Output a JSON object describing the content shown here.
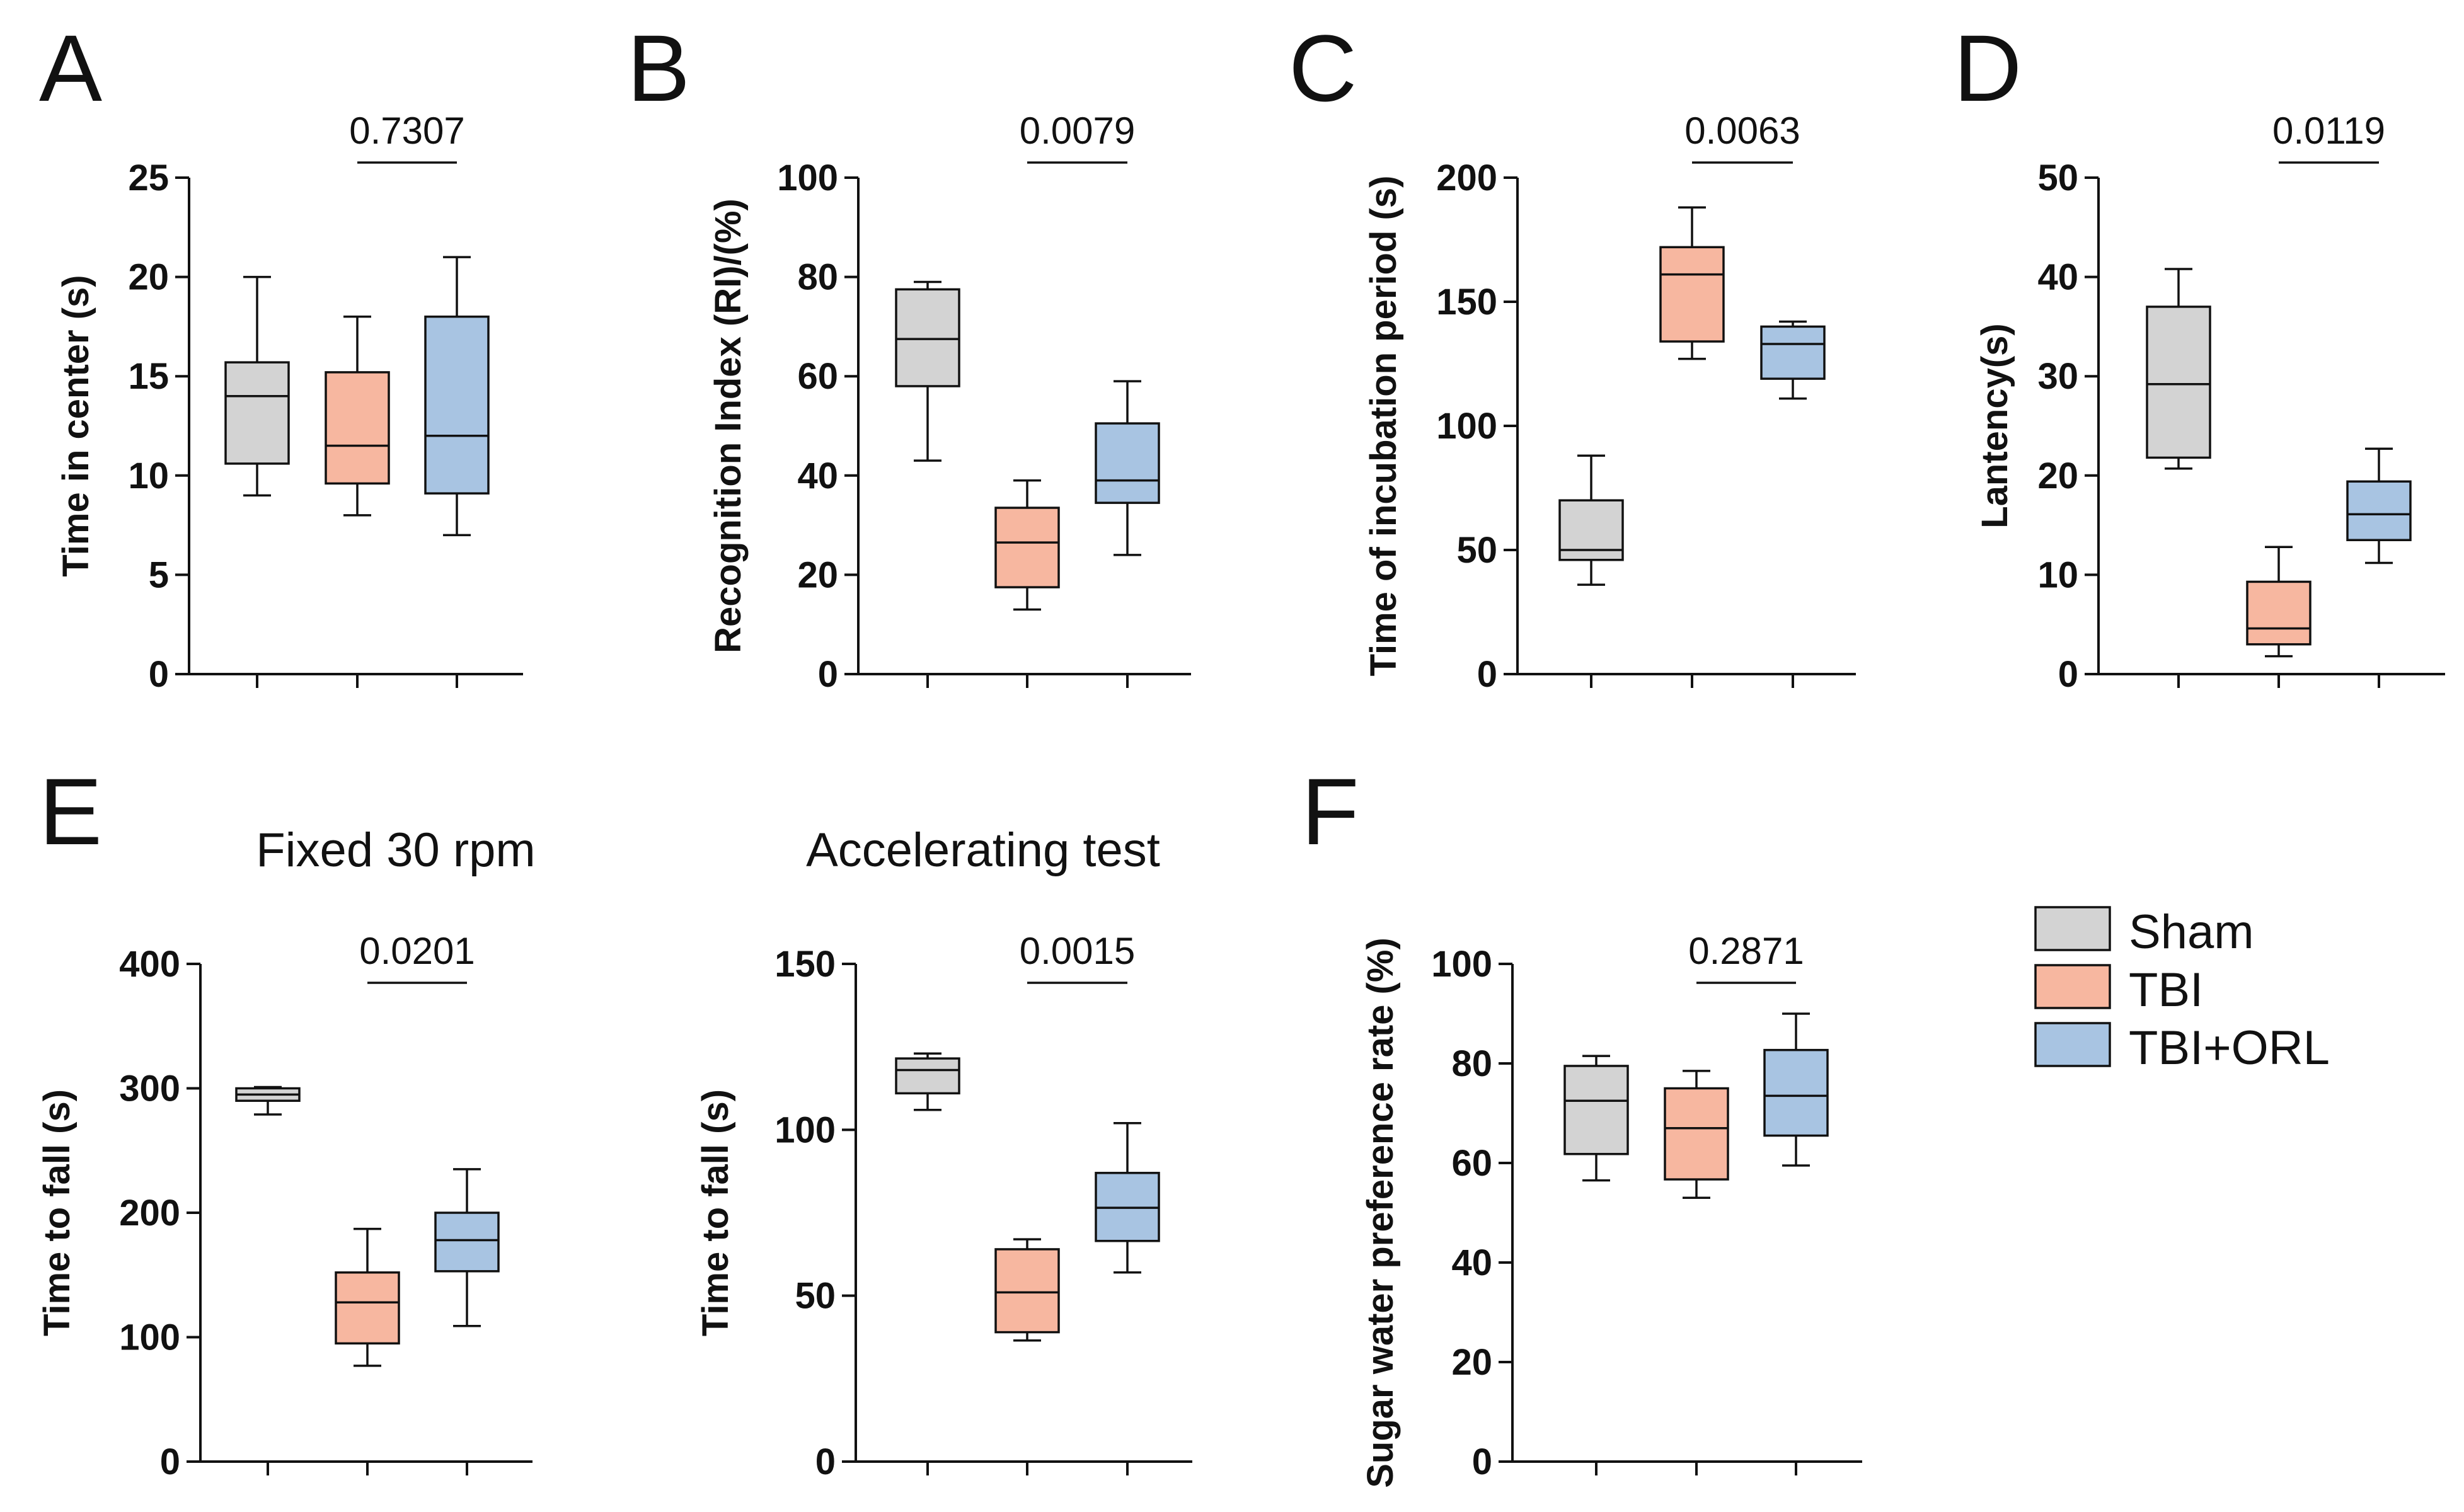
{
  "panel_letters": [
    "A",
    "B",
    "C",
    "D",
    "E",
    "F"
  ],
  "legend": {
    "entries": [
      {
        "name": "Sham",
        "color": "#d3d3d3"
      },
      {
        "name": "TBI",
        "color": "#f7b7a0"
      },
      {
        "name": "TBI+ORL",
        "color": "#a8c4e2"
      }
    ]
  },
  "chart_data": [
    {
      "id": "A",
      "letter": "A",
      "type": "box",
      "title": "",
      "ylabel": "Time in center (s)",
      "ylim": [
        0,
        25
      ],
      "yticks": [
        0,
        5,
        10,
        15,
        20,
        25
      ],
      "groups": [
        "Sham",
        "TBI",
        "TBI+ORL"
      ],
      "series": [
        {
          "name": "Sham",
          "min": 9,
          "q1": 10.6,
          "median": 14,
          "q3": 15.7,
          "max": 20
        },
        {
          "name": "TBI",
          "min": 8,
          "q1": 9.6,
          "median": 11.5,
          "q3": 15.2,
          "max": 18
        },
        {
          "name": "TBI+ORL",
          "min": 7,
          "q1": 9.1,
          "median": 12,
          "q3": 18,
          "max": 21
        }
      ],
      "comparison": {
        "groups": [
          "TBI",
          "TBI+ORL"
        ],
        "p_value": "0.7307"
      }
    },
    {
      "id": "B",
      "letter": "B",
      "type": "box",
      "title": "",
      "ylabel": "Recognition Index (RI)/(%)",
      "ylim": [
        0,
        100
      ],
      "yticks": [
        0,
        20,
        40,
        60,
        80,
        100
      ],
      "groups": [
        "Sham",
        "TBI",
        "TBI+ORL"
      ],
      "series": [
        {
          "name": "Sham",
          "min": 43,
          "q1": 58,
          "median": 67.5,
          "q3": 77.5,
          "max": 79
        },
        {
          "name": "TBI",
          "min": 13,
          "q1": 17.5,
          "median": 26.5,
          "q3": 33.5,
          "max": 39
        },
        {
          "name": "TBI+ORL",
          "min": 24,
          "q1": 34.5,
          "median": 39,
          "q3": 50.5,
          "max": 59
        }
      ],
      "comparison": {
        "groups": [
          "TBI",
          "TBI+ORL"
        ],
        "p_value": "0.0079"
      }
    },
    {
      "id": "C",
      "letter": "C",
      "type": "box",
      "title": "",
      "ylabel": "Time of incubation period (s)",
      "ylim": [
        0,
        200
      ],
      "yticks": [
        0,
        50,
        100,
        150,
        200
      ],
      "groups": [
        "Sham",
        "TBI",
        "TBI+ORL"
      ],
      "series": [
        {
          "name": "Sham",
          "min": 36,
          "q1": 46,
          "median": 50,
          "q3": 70,
          "max": 88
        },
        {
          "name": "TBI",
          "min": 127,
          "q1": 134,
          "median": 161,
          "q3": 172,
          "max": 188
        },
        {
          "name": "TBI+ORL",
          "min": 111,
          "q1": 119,
          "median": 133,
          "q3": 140,
          "max": 142
        }
      ],
      "comparison": {
        "groups": [
          "TBI",
          "TBI+ORL"
        ],
        "p_value": "0.0063"
      }
    },
    {
      "id": "D",
      "letter": "D",
      "type": "box",
      "title": "",
      "ylabel": "Lantency(s)",
      "ylim": [
        0,
        50
      ],
      "yticks": [
        0,
        10,
        20,
        30,
        40,
        50
      ],
      "groups": [
        "Sham",
        "TBI",
        "TBI+ORL"
      ],
      "series": [
        {
          "name": "Sham",
          "min": 20.7,
          "q1": 21.8,
          "median": 29.2,
          "q3": 37,
          "max": 40.8
        },
        {
          "name": "TBI",
          "min": 1.8,
          "q1": 3,
          "median": 4.6,
          "q3": 9.3,
          "max": 12.8
        },
        {
          "name": "TBI+ORL",
          "min": 11.2,
          "q1": 13.5,
          "median": 16.1,
          "q3": 19.4,
          "max": 22.7
        }
      ],
      "comparison": {
        "groups": [
          "TBI",
          "TBI+ORL"
        ],
        "p_value": "0.0119"
      }
    },
    {
      "id": "E1",
      "letter": "E",
      "type": "box",
      "title": "Fixed 30 rpm",
      "ylabel": "Time to fall (s)",
      "ylim": [
        0,
        400
      ],
      "yticks": [
        0,
        100,
        200,
        300,
        400
      ],
      "groups": [
        "Sham",
        "TBI",
        "TBI+ORL"
      ],
      "series": [
        {
          "name": "Sham",
          "min": 279,
          "q1": 290,
          "median": 295,
          "q3": 300,
          "max": 301
        },
        {
          "name": "TBI",
          "min": 77,
          "q1": 95,
          "median": 128,
          "q3": 152,
          "max": 187
        },
        {
          "name": "TBI+ORL",
          "min": 109,
          "q1": 153,
          "median": 178,
          "q3": 200,
          "max": 235
        }
      ],
      "comparison": {
        "groups": [
          "TBI",
          "TBI+ORL"
        ],
        "p_value": "0.0201"
      }
    },
    {
      "id": "E2",
      "letter": "",
      "type": "box",
      "title": "Accelerating test",
      "ylabel": "Time to fall (s)",
      "ylim": [
        0,
        150
      ],
      "yticks": [
        0,
        50,
        100,
        150
      ],
      "groups": [
        "Sham",
        "TBI",
        "TBI+ORL"
      ],
      "series": [
        {
          "name": "Sham",
          "min": 106,
          "q1": 111,
          "median": 118,
          "q3": 121.5,
          "max": 123
        },
        {
          "name": "TBI",
          "min": 36.5,
          "q1": 39,
          "median": 51,
          "q3": 64,
          "max": 67
        },
        {
          "name": "TBI+ORL",
          "min": 57,
          "q1": 66.5,
          "median": 76.5,
          "q3": 87,
          "max": 102
        }
      ],
      "comparison": {
        "groups": [
          "TBI",
          "TBI+ORL"
        ],
        "p_value": "0.0015"
      }
    },
    {
      "id": "F",
      "letter": "F",
      "type": "box",
      "title": "",
      "ylabel": "Sugar water preference rate (%)",
      "ylim": [
        0,
        100
      ],
      "yticks": [
        0,
        20,
        40,
        60,
        80,
        100
      ],
      "groups": [
        "Sham",
        "TBI",
        "TBI+ORL"
      ],
      "series": [
        {
          "name": "Sham",
          "min": 56.5,
          "q1": 61.8,
          "median": 72.5,
          "q3": 79.5,
          "max": 81.5
        },
        {
          "name": "TBI",
          "min": 53,
          "q1": 56.7,
          "median": 67,
          "q3": 75,
          "max": 78.5
        },
        {
          "name": "TBI+ORL",
          "min": 59.5,
          "q1": 65.5,
          "median": 73.5,
          "q3": 82.7,
          "max": 90
        }
      ],
      "comparison": {
        "groups": [
          "TBI",
          "TBI+ORL"
        ],
        "p_value": "0.2871"
      }
    }
  ]
}
